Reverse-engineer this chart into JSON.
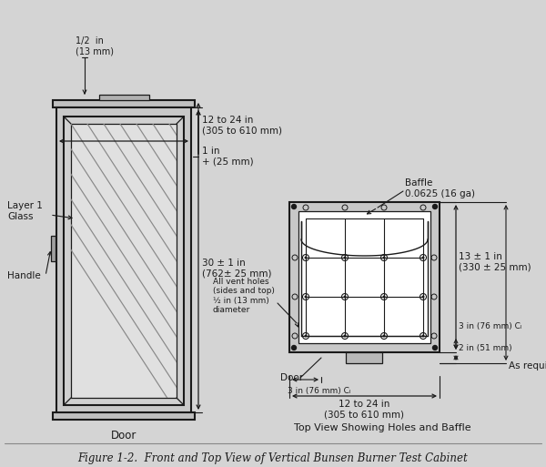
{
  "title": "Figure 1-2.  Front and Top View of Vertical Bunsen Burner Test Cabinet",
  "bg_color": "#d4d4d4",
  "line_color": "#1a1a1a",
  "annotations": {
    "half_in": "1/2  in\n(13 mm)",
    "width_12_24": "12 to 24 in\n(305 to 610 mm)",
    "one_in": "1 in\n+ (25 mm)",
    "height_30": "30 ± 1 in\n(762± 25 mm)",
    "layer1_glass": "Layer 1\nGlass",
    "handle": "Handle",
    "door_front": "Door",
    "vent_holes": "All vent holes\n(sides and top)\n½ in (13 mm)\ndiameter",
    "baffle": "Baffle\n0.0625 (16 ga)",
    "dim_13": "13 ± 1 in\n(330 ± 25 mm)",
    "dim_3_right": "3 in (76 mm) Cₗ",
    "dim_2": "2 in (51 mm)",
    "as_required": "As required",
    "dim_3_bottom": "3 in (76 mm) Cₗ",
    "dim_12_24_bottom": "12 to 24 in\n(305 to 610 mm)",
    "door_top_view": "Door",
    "top_view_label": "Top View Showing Holes and Baffle"
  }
}
